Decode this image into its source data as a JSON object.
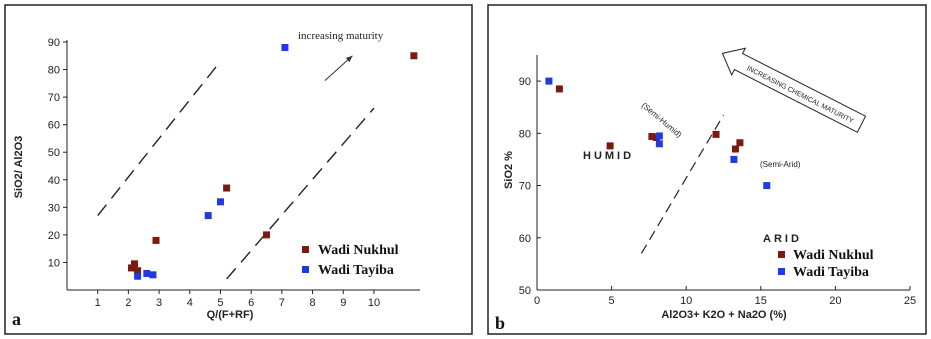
{
  "colors": {
    "nukhul": "#7a1a10",
    "tayiba": "#1f3be0"
  },
  "chart_data": [
    {
      "panel": "a",
      "type": "scatter",
      "xlabel": "Q/(F+RF)",
      "ylabel": "SiO2/ Al2O3",
      "xlim": [
        0,
        11.5
      ],
      "ylim": [
        0,
        90
      ],
      "xticks": [
        1,
        2,
        3,
        4,
        5,
        6,
        7,
        8,
        9,
        10
      ],
      "yticks": [
        10,
        20,
        30,
        40,
        50,
        60,
        70,
        80,
        90
      ],
      "annotation": "increasing maturity",
      "legend": [
        "Wadi Nukhul",
        "Wadi Tayiba"
      ],
      "series": [
        {
          "name": "Wadi Nukhul",
          "points": [
            [
              2.1,
              8
            ],
            [
              2.2,
              9.5
            ],
            [
              2.3,
              7
            ],
            [
              2.9,
              18
            ],
            [
              5.2,
              37
            ],
            [
              6.5,
              20
            ],
            [
              11.3,
              85
            ]
          ]
        },
        {
          "name": "Wadi Tayiba",
          "points": [
            [
              2.3,
              5
            ],
            [
              2.6,
              6
            ],
            [
              2.8,
              5.5
            ],
            [
              4.6,
              27
            ],
            [
              5.0,
              32
            ],
            [
              7.1,
              88
            ]
          ]
        }
      ],
      "dashed_lines": [
        [
          [
            1,
            27
          ],
          [
            5,
            83
          ]
        ],
        [
          [
            5.2,
            4
          ],
          [
            10,
            66
          ]
        ]
      ],
      "arrow": [
        [
          8.4,
          76
        ],
        [
          9.3,
          85
        ]
      ]
    },
    {
      "panel": "b",
      "type": "scatter",
      "xlabel": "Al2O3+ K2O + Na2O (%)",
      "ylabel": "SiO2 %",
      "xlim": [
        0,
        25
      ],
      "ylim": [
        50,
        95
      ],
      "xticks": [
        0,
        5,
        10,
        15,
        20,
        25
      ],
      "yticks": [
        50,
        60,
        70,
        80,
        90
      ],
      "regions": [
        "HUMID",
        "ARID"
      ],
      "sub_labels": [
        "(Semi-Humid)",
        "(Semi-Arid)"
      ],
      "arrow_label": "INCREASING CHEMICAL MATURITY",
      "legend": [
        "Wadi Nukhul",
        "Wadi Tayiba"
      ],
      "series": [
        {
          "name": "Wadi Nukhul",
          "points": [
            [
              1.5,
              88.5
            ],
            [
              4.9,
              77.6
            ],
            [
              7.7,
              79.4
            ],
            [
              8.0,
              79.2
            ],
            [
              12.0,
              79.8
            ],
            [
              13.3,
              77.0
            ],
            [
              13.6,
              78.2
            ]
          ]
        },
        {
          "name": "Wadi Tayiba",
          "points": [
            [
              0.8,
              90.0
            ],
            [
              8.2,
              79.5
            ],
            [
              8.2,
              78.0
            ],
            [
              13.2,
              75.0
            ],
            [
              15.4,
              70.0
            ]
          ]
        }
      ],
      "dashed_line": [
        [
          7,
          57
        ],
        [
          12.5,
          83.5
        ]
      ]
    }
  ]
}
